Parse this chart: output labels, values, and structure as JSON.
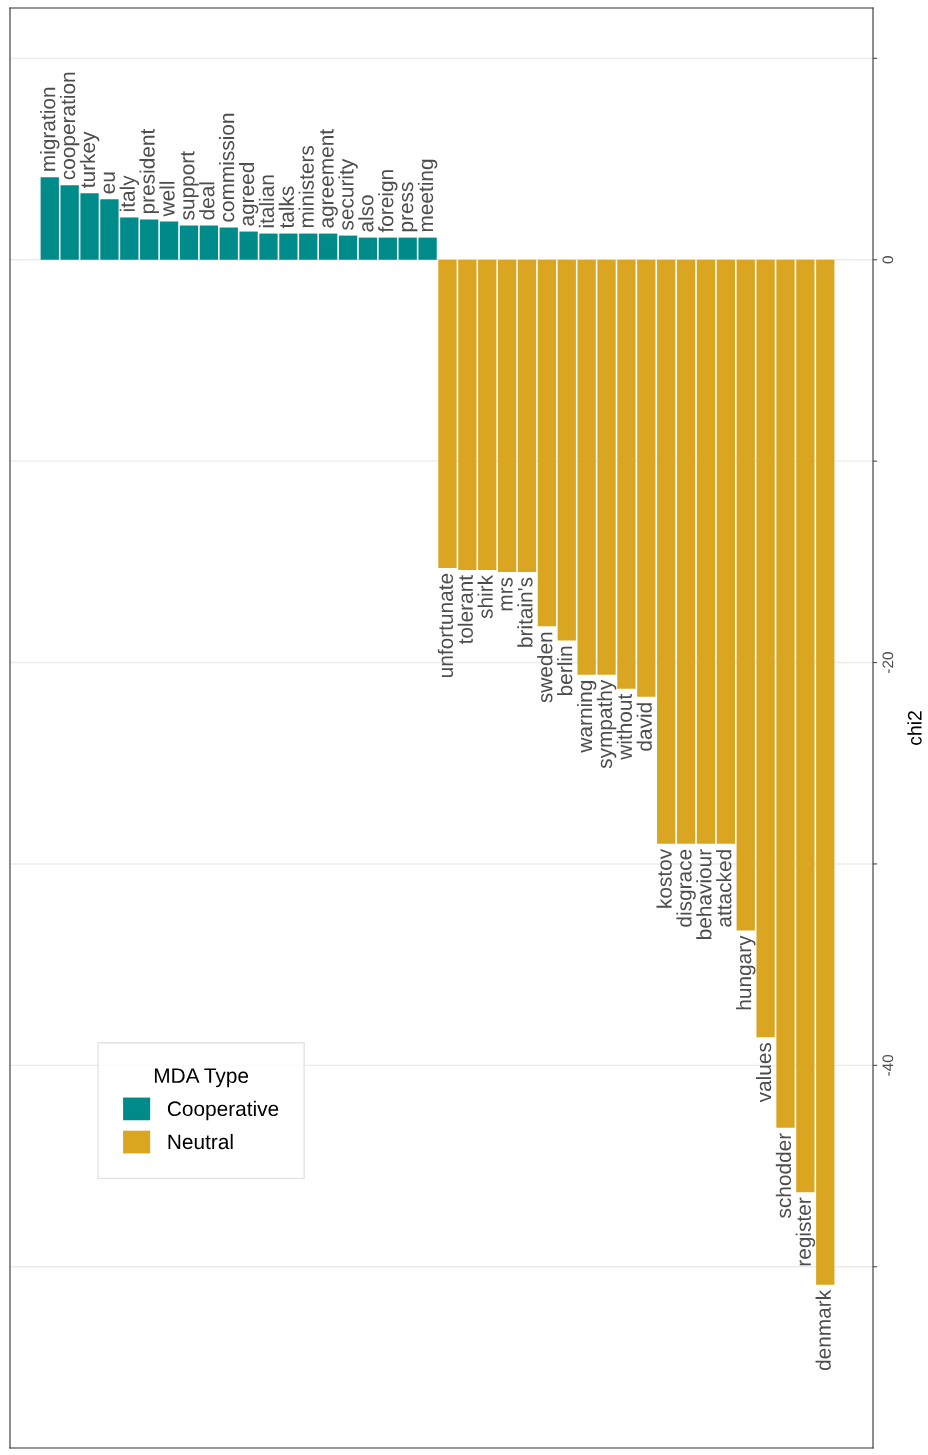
{
  "chart_data": {
    "type": "bar",
    "ylabel": "chi2",
    "legend_title": "MDA Type",
    "categories": [
      "migration",
      "cooperation",
      "turkey",
      "eu",
      "italy",
      "president",
      "well",
      "support",
      "deal",
      "commission",
      "agreed",
      "italian",
      "talks",
      "ministers",
      "agreement",
      "security",
      "also",
      "foreign",
      "press",
      "meeting",
      "unfortunate",
      "tolerant",
      "shirk",
      "mrs",
      "britain's",
      "sweden",
      "berlin",
      "warning",
      "sympathy",
      "without",
      "david",
      "kostov",
      "disgrace",
      "behaviour",
      "attacked",
      "hungary",
      "values",
      "schodder",
      "register",
      "denmark"
    ],
    "series": [
      {
        "name": "Cooperative",
        "color": "#008b8b",
        "values": [
          4.1,
          3.7,
          3.3,
          3.0,
          2.1,
          2.0,
          1.9,
          1.7,
          1.7,
          1.6,
          1.4,
          1.3,
          1.3,
          1.3,
          1.3,
          1.2,
          1.1,
          1.1,
          1.1,
          1.1,
          null,
          null,
          null,
          null,
          null,
          null,
          null,
          null,
          null,
          null,
          null,
          null,
          null,
          null,
          null,
          null,
          null,
          null,
          null,
          null
        ]
      },
      {
        "name": "Neutral",
        "color": "#daa520",
        "values": [
          null,
          null,
          null,
          null,
          null,
          null,
          null,
          null,
          null,
          null,
          null,
          null,
          null,
          null,
          null,
          null,
          null,
          null,
          null,
          null,
          -15.3,
          -15.4,
          -15.4,
          -15.5,
          -15.5,
          -18.2,
          -18.9,
          -20.6,
          -20.6,
          -21.3,
          -21.7,
          -29.0,
          -29.0,
          -29.0,
          -29.0,
          -33.3,
          -38.6,
          -43.1,
          -46.3,
          -50.9
        ]
      }
    ],
    "ylim": [
      -59,
      12.5
    ],
    "yticks": [
      {
        "value": 10,
        "label": null
      },
      0,
      {
        "value": -10,
        "label": null
      },
      -20,
      {
        "value": -30,
        "label": null
      },
      -40,
      {
        "value": -50,
        "label": null
      }
    ],
    "grid": "y",
    "legend": "bottom left"
  }
}
